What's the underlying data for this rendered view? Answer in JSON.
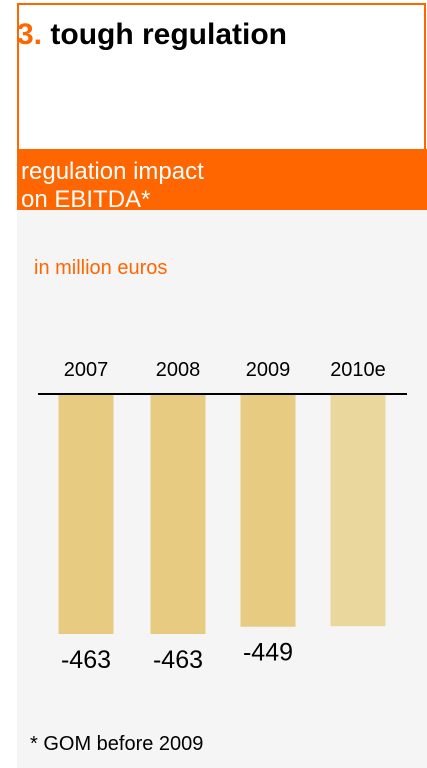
{
  "header": {
    "number": "3.",
    "title": "tough regulation"
  },
  "band": {
    "line1": "regulation impact",
    "line2": "on EBITDA*"
  },
  "unit_label": "in million euros",
  "footnote": "* GOM before 2009",
  "colors": {
    "accent": "#ff6600",
    "bar": "#e6cb80",
    "bar_estimate": "#ead79d",
    "panel": "#f5f5f5"
  },
  "chart_data": {
    "type": "bar",
    "orientation": "downward from baseline",
    "categories": [
      "2007",
      "2008",
      "2009",
      "2010e"
    ],
    "values": [
      -463,
      -463,
      -449,
      -448
    ],
    "data_labels": [
      "-463",
      "-463",
      "-449",
      ""
    ],
    "title": "",
    "xlabel": "",
    "ylabel": "",
    "ylim": [
      -463,
      0
    ],
    "grid": false
  }
}
